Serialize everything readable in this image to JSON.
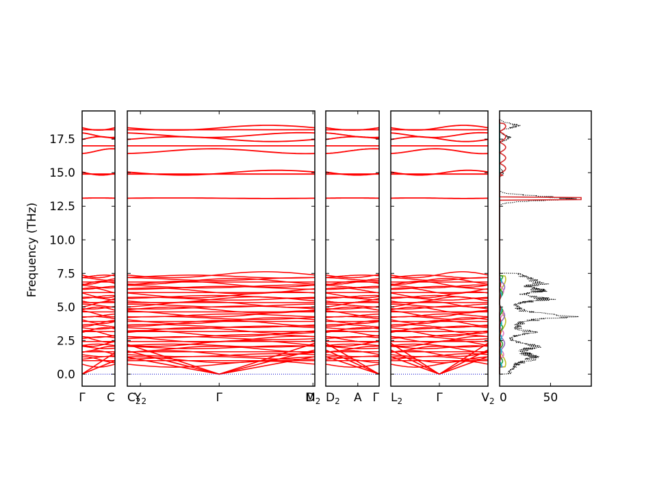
{
  "chart_data": {
    "type": "line",
    "ylabel": "Frequency (THz)",
    "ylim": [
      -0.9,
      19.6
    ],
    "yticks": [
      0.0,
      2.5,
      5.0,
      7.5,
      10.0,
      12.5,
      15.0,
      17.5
    ],
    "ytick_labels": [
      "0.0",
      "2.5",
      "5.0",
      "7.5",
      "10.0",
      "12.5",
      "15.0",
      "17.5"
    ],
    "line_color": "#ff0000",
    "zero_line_color": "#0000cc",
    "segments": [
      {
        "x_labels": [
          "Γ",
          "C"
        ],
        "x_label_subs": [
          "",
          ""
        ]
      },
      {
        "x_labels": [
          "C",
          "Y",
          "Γ",
          "M",
          "D"
        ],
        "x_label_subs": [
          "2",
          "2",
          "",
          "2",
          ""
        ]
      },
      {
        "x_labels": [
          "D",
          "A",
          "Γ"
        ],
        "x_label_subs": [
          "2",
          "",
          ""
        ]
      },
      {
        "x_labels": [
          "L",
          "Γ",
          "V"
        ],
        "x_label_subs": [
          "2",
          "",
          "2"
        ]
      }
    ],
    "dos": {
      "xlim": [
        0,
        90
      ],
      "xticks": [
        0,
        50
      ],
      "xtick_labels": [
        "0",
        "50"
      ],
      "total_color": "#000000",
      "projection_colors": [
        "#bcbd22",
        "#9467bd",
        "#e377c2",
        "#2ca02c",
        "#17becf",
        "#d62728"
      ],
      "peaks": [
        {
          "freq": 13.1,
          "value": 83
        },
        {
          "freq": 18.5,
          "value": 21
        },
        {
          "freq": 17.6,
          "value": 12
        },
        {
          "freq": 15.0,
          "value": 5
        },
        {
          "freq": 6.8,
          "value": 25
        },
        {
          "freq": 6.2,
          "value": 33
        },
        {
          "freq": 5.6,
          "value": 45
        },
        {
          "freq": 4.3,
          "value": 49
        },
        {
          "freq": 3.1,
          "value": 25
        },
        {
          "freq": 2.1,
          "value": 20
        },
        {
          "freq": 1.2,
          "value": 14
        }
      ]
    }
  }
}
